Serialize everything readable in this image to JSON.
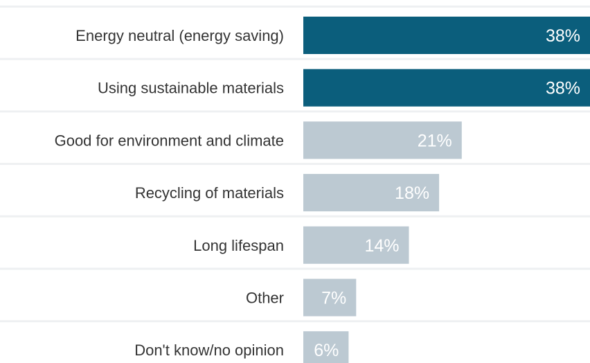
{
  "chart_data": {
    "type": "bar",
    "orientation": "horizontal",
    "categories": [
      "Energy neutral (energy saving)",
      "Using sustainable materials",
      "Good for environment and climate",
      "Recycling of materials",
      "Long lifespan",
      "Other",
      "Don't know/no opinion"
    ],
    "values": [
      38,
      38,
      21,
      18,
      14,
      7,
      6
    ],
    "value_labels": [
      "38%",
      "38%",
      "21%",
      "18%",
      "14%",
      "7%",
      "6%"
    ],
    "unit": "%",
    "xlim": [
      0,
      38
    ],
    "highlighted": [
      0,
      1
    ],
    "grid": false,
    "legend": "none",
    "colors": {
      "highlight": "#0b5e7c",
      "default": "#bcc9d2",
      "separator": "#eef0f2",
      "label": "#333333",
      "value_label": "#ffffff"
    }
  }
}
